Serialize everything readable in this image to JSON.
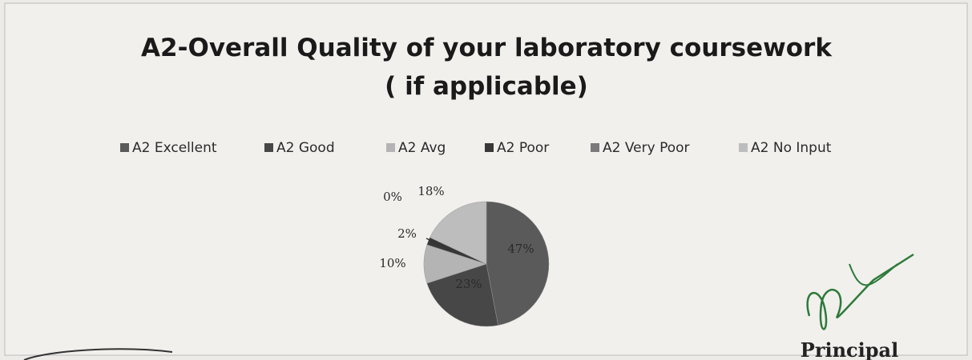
{
  "chart_data": {
    "type": "pie",
    "title": "A2-Overall Quality of your laboratory coursework",
    "subtitle": "( if applicable)",
    "categories": [
      "A2 Excellent",
      "A2 Good",
      "A2 Avg",
      "A2 Poor",
      "A2 Very Poor",
      "A2 No Input"
    ],
    "values": [
      47,
      23,
      10,
      2,
      0,
      18
    ],
    "value_labels": [
      "47%",
      "23%",
      "10%",
      "2%",
      "0%",
      "18%"
    ],
    "colors": [
      "#5a5a5a",
      "#474747",
      "#b4b4b4",
      "#383838",
      "#7a7a7a",
      "#bdbdbd"
    ],
    "legend": "top"
  },
  "footer": {
    "caption": "Principal"
  }
}
